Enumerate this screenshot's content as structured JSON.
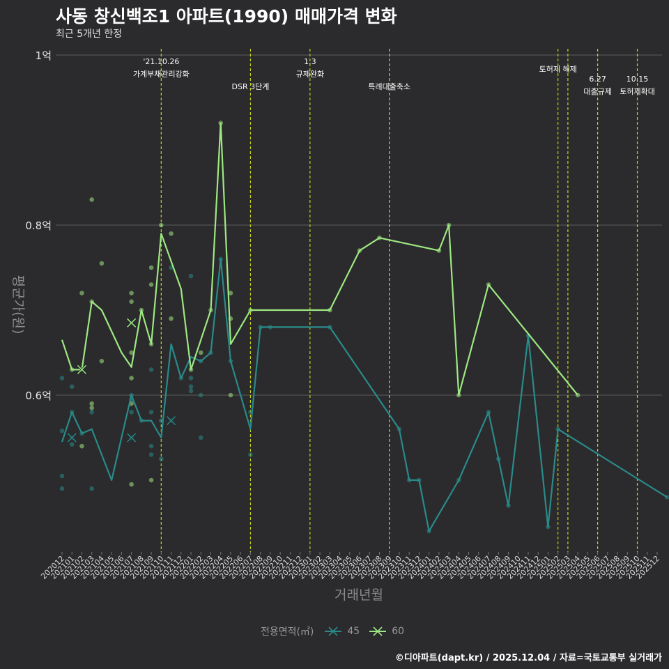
{
  "title": "사동 창신백조1 아파트(1990) 매매가격 변화",
  "subtitle": "최근 5개년 한정",
  "caption": "©디아파트(dapt.kr) / 2025.12.04 / 자료=국토교통부 실거래가",
  "legend": {
    "title": "전용면적(㎡)",
    "items": [
      {
        "label": "45",
        "color": "#2a8b8a"
      },
      {
        "label": "60",
        "color": "#9ee882"
      }
    ]
  },
  "colors": {
    "background": "#2b2a2c",
    "grid": "#5c5c5c",
    "event_line": "#c9d41c",
    "series_45": "#2a8b8a",
    "series_60": "#9ee882"
  },
  "chart_data": {
    "type": "line",
    "title": "사동 창신백조1 아파트(1990) 매매가격 변화",
    "xlabel": "거래년월",
    "ylabel": "평균가(원)",
    "ylim": [
      0.42,
      1.0
    ],
    "y_ticks": [
      {
        "value": 0.6,
        "label": "0.6억"
      },
      {
        "value": 0.8,
        "label": "0.8억"
      },
      {
        "value": 1.0,
        "label": "1억"
      }
    ],
    "x_labels": [
      "202012",
      "202101",
      "202102",
      "202103",
      "202104",
      "202105",
      "202106",
      "202107",
      "202108",
      "202109",
      "202110",
      "202111",
      "202112",
      "202201",
      "202202",
      "202203",
      "202204",
      "202205",
      "202206",
      "202207",
      "202208",
      "202209",
      "202210",
      "202211",
      "202212",
      "202301",
      "202302",
      "202303",
      "202304",
      "202305",
      "202306",
      "202307",
      "202308",
      "202309",
      "202310",
      "202311",
      "202312",
      "202401",
      "202402",
      "202403",
      "202404",
      "202405",
      "202406",
      "202407",
      "202408",
      "202409",
      "202410",
      "202411",
      "202412",
      "202501",
      "202502",
      "202503",
      "202504",
      "202505",
      "202506",
      "202507",
      "202508",
      "202509",
      "202510",
      "202511",
      "202512"
    ],
    "events": [
      {
        "x": 10,
        "date": "'21.10.26",
        "label": "가계부채관리강화",
        "row": 0
      },
      {
        "x": 19,
        "date": "",
        "label": "DSR 3단계",
        "row": 1
      },
      {
        "x": 25,
        "date": "1.3",
        "label": "규제완화",
        "row": 0
      },
      {
        "x": 33,
        "date": "",
        "label": "특례대출축소",
        "row": 1
      },
      {
        "x": 50,
        "date": "",
        "label": "토허제 해제",
        "row": 2
      },
      {
        "x": 51,
        "date": "",
        "label": "",
        "row": 2
      },
      {
        "x": 54,
        "date": "6.27",
        "label": "대출규제",
        "row": 3
      },
      {
        "x": 58,
        "date": "10.15",
        "label": "토허제확대",
        "row": 3
      }
    ],
    "series": [
      {
        "name": "45",
        "color": "#2a8b8a",
        "line": [
          [
            0,
            0.545
          ],
          [
            1,
            0.58
          ],
          [
            2,
            0.555
          ],
          [
            3,
            0.56
          ],
          [
            4,
            0.53
          ],
          [
            5,
            0.5
          ],
          [
            7,
            0.6
          ],
          [
            8,
            0.57
          ],
          [
            9,
            0.57
          ],
          [
            10,
            0.55
          ],
          [
            11,
            0.66
          ],
          [
            12,
            0.62
          ],
          [
            13,
            0.645
          ],
          [
            14,
            0.64
          ],
          [
            15,
            0.65
          ],
          [
            16,
            0.76
          ],
          [
            17,
            0.64
          ],
          [
            19,
            0.56
          ],
          [
            20,
            0.68
          ],
          [
            21,
            0.68
          ],
          [
            27,
            0.68
          ],
          [
            34,
            0.56
          ],
          [
            35,
            0.5
          ],
          [
            36,
            0.5
          ],
          [
            37,
            0.44
          ],
          [
            40,
            0.5
          ],
          [
            43,
            0.58
          ],
          [
            44,
            0.525
          ],
          [
            45,
            0.47
          ],
          [
            47,
            0.67
          ],
          [
            49,
            0.445
          ],
          [
            50,
            0.56
          ],
          [
            61,
            0.48
          ]
        ],
        "points": [
          [
            0,
            0.62
          ],
          [
            0,
            0.558
          ],
          [
            0,
            0.505
          ],
          [
            0,
            0.49
          ],
          [
            1,
            0.61
          ],
          [
            1,
            0.58
          ],
          [
            1,
            0.542
          ],
          [
            1,
            0.55
          ],
          [
            2,
            0.555
          ],
          [
            3,
            0.49
          ],
          [
            3,
            0.58
          ],
          [
            7,
            0.595
          ],
          [
            7,
            0.58
          ],
          [
            7,
            0.55
          ],
          [
            7,
            0.6
          ],
          [
            8,
            0.57
          ],
          [
            9,
            0.63
          ],
          [
            9,
            0.58
          ],
          [
            9,
            0.54
          ],
          [
            9,
            0.53
          ],
          [
            10,
            0.525
          ],
          [
            10,
            0.57
          ],
          [
            11,
            0.57
          ],
          [
            11,
            0.75
          ],
          [
            12,
            0.62
          ],
          [
            13,
            0.62
          ],
          [
            13,
            0.61
          ],
          [
            13,
            0.605
          ],
          [
            13,
            0.74
          ],
          [
            14,
            0.6
          ],
          [
            14,
            0.55
          ],
          [
            14,
            0.64
          ],
          [
            15,
            0.65
          ],
          [
            16,
            0.76
          ],
          [
            17,
            0.64
          ],
          [
            19,
            0.53
          ],
          [
            19,
            0.58
          ],
          [
            20,
            0.68
          ],
          [
            21,
            0.68
          ],
          [
            27,
            0.68
          ],
          [
            34,
            0.56
          ],
          [
            35,
            0.5
          ],
          [
            36,
            0.5
          ],
          [
            37,
            0.44
          ],
          [
            40,
            0.5
          ],
          [
            43,
            0.58
          ],
          [
            44,
            0.525
          ],
          [
            45,
            0.47
          ],
          [
            47,
            0.67
          ],
          [
            49,
            0.445
          ],
          [
            50,
            0.56
          ],
          [
            61,
            0.48
          ]
        ],
        "markers": [
          [
            1,
            0.55
          ],
          [
            7,
            0.55
          ],
          [
            11,
            0.57
          ]
        ]
      },
      {
        "name": "60",
        "color": "#9ee882",
        "line": [
          [
            0,
            0.665
          ],
          [
            1,
            0.63
          ],
          [
            2,
            0.63
          ],
          [
            3,
            0.71
          ],
          [
            4,
            0.7
          ],
          [
            6,
            0.65
          ],
          [
            7,
            0.633
          ],
          [
            8,
            0.7
          ],
          [
            9,
            0.66
          ],
          [
            10,
            0.79
          ],
          [
            12,
            0.725
          ],
          [
            13,
            0.63
          ],
          [
            15,
            0.7
          ],
          [
            16,
            0.92
          ],
          [
            17,
            0.66
          ],
          [
            19,
            0.7
          ],
          [
            27,
            0.7
          ],
          [
            30,
            0.77
          ],
          [
            32,
            0.785
          ],
          [
            38,
            0.77
          ],
          [
            39,
            0.8
          ],
          [
            40,
            0.6
          ],
          [
            43,
            0.73
          ],
          [
            52,
            0.6
          ]
        ],
        "points": [
          [
            1,
            0.63
          ],
          [
            2,
            0.72
          ],
          [
            2,
            0.54
          ],
          [
            3,
            0.83
          ],
          [
            3,
            0.71
          ],
          [
            3,
            0.59
          ],
          [
            3,
            0.585
          ],
          [
            4,
            0.755
          ],
          [
            4,
            0.64
          ],
          [
            7,
            0.72
          ],
          [
            7,
            0.71
          ],
          [
            7,
            0.65
          ],
          [
            7,
            0.62
          ],
          [
            7,
            0.59
          ],
          [
            7,
            0.495
          ],
          [
            8,
            0.7
          ],
          [
            9,
            0.75
          ],
          [
            9,
            0.73
          ],
          [
            9,
            0.66
          ],
          [
            9,
            0.5
          ],
          [
            10,
            0.8
          ],
          [
            11,
            0.79
          ],
          [
            11,
            0.69
          ],
          [
            13,
            0.63
          ],
          [
            14,
            0.65
          ],
          [
            15,
            0.7
          ],
          [
            16,
            0.92
          ],
          [
            17,
            0.72
          ],
          [
            17,
            0.69
          ],
          [
            17,
            0.6
          ],
          [
            19,
            0.7
          ],
          [
            27,
            0.7
          ],
          [
            30,
            0.77
          ],
          [
            32,
            0.785
          ],
          [
            38,
            0.77
          ],
          [
            39,
            0.8
          ],
          [
            40,
            0.6
          ],
          [
            43,
            0.73
          ],
          [
            52,
            0.6
          ]
        ],
        "markers": [
          [
            2,
            0.63
          ],
          [
            7,
            0.685
          ]
        ]
      }
    ]
  }
}
